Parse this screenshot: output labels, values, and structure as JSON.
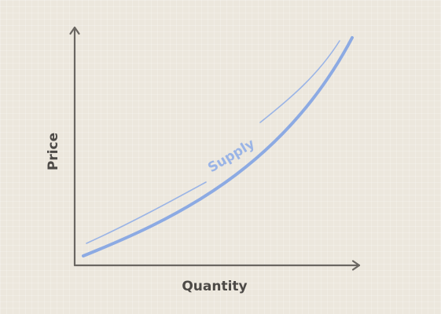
{
  "diagram": {
    "x_axis_label": "Quantity",
    "y_axis_label": "Price",
    "curve_label": "Supply",
    "colors": {
      "background": "#ece7dd",
      "axis": "#6a6661",
      "curve": "#8caae3"
    }
  }
}
